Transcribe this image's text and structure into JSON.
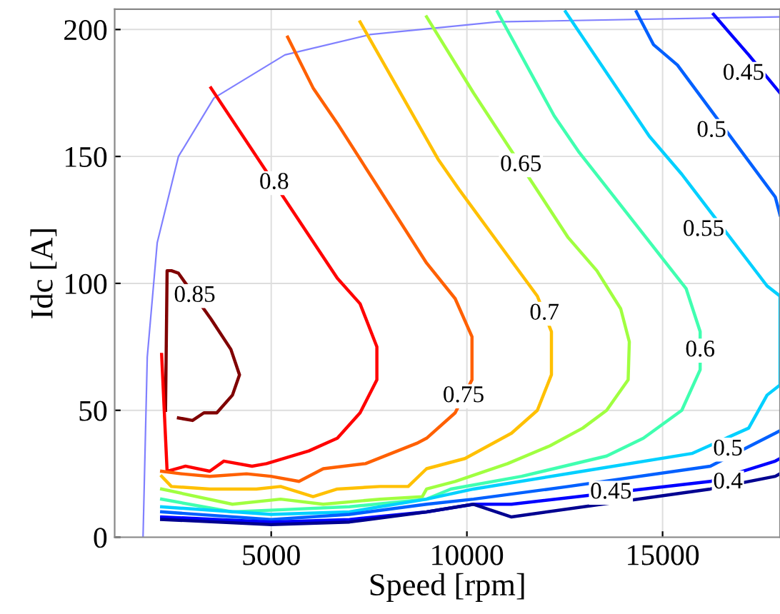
{
  "chart_data": {
    "type": "line",
    "xlabel": "Speed [rpm]",
    "ylabel": "Idc [A]",
    "xlim": [
      1000,
      18000
    ],
    "ylim": [
      0,
      208
    ],
    "xticks": [
      5000,
      10000,
      15000
    ],
    "yticks": [
      0,
      50,
      100,
      150,
      200
    ],
    "grid": true,
    "legend": false,
    "marker": "none",
    "line_style": "solid",
    "series": [
      {
        "color": "#8080ff",
        "x": [
          1725,
          1833,
          2087,
          2630,
          3536,
          5350,
          7520,
          10780,
          18000
        ],
        "values": [
          0,
          71,
          116,
          150,
          173,
          190,
          198,
          203,
          205
        ]
      },
      {
        "name": "0.85",
        "color": "#800000",
        "x": [
          2300,
          2340,
          2450,
          2630,
          3460,
          3970,
          4190,
          4010,
          3610,
          3280,
          2990,
          2630
        ],
        "values": [
          50,
          105,
          105,
          104,
          86,
          74,
          64,
          56,
          49,
          49,
          46,
          47
        ]
      },
      {
        "name": "0.8",
        "color": "#ff0000",
        "x": [
          3460,
          6690,
          7270,
          7700,
          7700,
          7270,
          6690,
          5960,
          4880,
          4510,
          3790,
          3430,
          2810,
          2340,
          2200
        ],
        "values": [
          177,
          102,
          92,
          75,
          62,
          49,
          39,
          34,
          29,
          28,
          30,
          26,
          28,
          26,
          72
        ]
      },
      {
        "name": "0.75",
        "color": "#ff6000",
        "x": [
          5420,
          6070,
          6690,
          8970,
          9700,
          10130,
          10130,
          9700,
          8970,
          8720,
          7410,
          6330,
          5710,
          4990,
          4370,
          3430,
          2700,
          2200
        ],
        "values": [
          197,
          177,
          163,
          108,
          94,
          79,
          62,
          49,
          39,
          37,
          29,
          27,
          22,
          24,
          25,
          24,
          25,
          26
        ]
      },
      {
        "name": "0.7",
        "color": "#ffc000",
        "x": [
          7270,
          9260,
          9800,
          11800,
          12160,
          12160,
          11800,
          11140,
          9950,
          8970,
          8500,
          7780,
          6690,
          6070,
          5240,
          4620,
          3430,
          2450,
          2200
        ],
        "values": [
          203,
          149,
          137,
          95,
          81,
          64,
          50,
          41,
          31,
          27,
          20,
          20,
          19,
          16,
          20,
          19,
          19,
          20,
          24
        ]
      },
      {
        "name": "0.65",
        "color": "#a0ff40",
        "x": [
          8970,
          10170,
          12590,
          13320,
          13930,
          14150,
          14120,
          13570,
          12960,
          12120,
          11040,
          9700,
          8970,
          8860,
          7780,
          6330,
          5240,
          4010,
          2200
        ],
        "values": [
          205,
          175,
          118,
          105,
          90,
          77,
          62,
          50,
          43,
          36,
          29,
          22,
          19,
          16,
          15,
          13,
          15,
          13,
          19
        ]
      },
      {
        "name": "0.6",
        "color": "#40ffb0",
        "x": [
          10780,
          12230,
          12850,
          15600,
          15960,
          15960,
          15490,
          14510,
          13570,
          11400,
          9590,
          8970,
          7000,
          5500,
          4000,
          2200
        ],
        "values": [
          207,
          166,
          152,
          98,
          81,
          66,
          50,
          39,
          32,
          24,
          19,
          15,
          12,
          11,
          10,
          15
        ]
      },
      {
        "name": "0.55",
        "color": "#00d0ff",
        "x": [
          12520,
          14660,
          15490,
          17670,
          18000,
          18000,
          17670,
          17200,
          15750,
          12960,
          10170,
          8970,
          7000,
          5000,
          2200
        ],
        "values": [
          207,
          158,
          143,
          99,
          95,
          60,
          56,
          43,
          33,
          26,
          19,
          15,
          10,
          9,
          12
        ]
      },
      {
        "name": "0.5",
        "color": "#0060ff",
        "x": [
          14330,
          14770,
          15380,
          17880,
          18000
        ],
        "values": [
          207,
          194,
          186,
          134,
          127
        ]
      },
      {
        "name": "0.5",
        "color": "#0060ff",
        "x": [
          18000,
          17880,
          16220,
          12590,
          10170,
          8970,
          7000,
          5000,
          2200
        ],
        "values": [
          42,
          41,
          28,
          20,
          15,
          13,
          9,
          7,
          10
        ]
      },
      {
        "name": "0.45",
        "color": "#0000ff",
        "x": [
          16300,
          17200,
          18000
        ],
        "values": [
          206,
          190,
          175
        ]
      },
      {
        "name": "0.45",
        "color": "#0000ff",
        "x": [
          18000,
          17880,
          16220,
          11140,
          10170,
          8970,
          7000,
          5000,
          2200
        ],
        "values": [
          31,
          30,
          22,
          13,
          13,
          10,
          7,
          6,
          8
        ]
      },
      {
        "name": "0.4",
        "color": "#000090",
        "x": [
          18000,
          17880,
          16220,
          11140,
          10170,
          8970,
          7000,
          5000,
          2200
        ],
        "values": [
          25,
          24,
          19,
          8,
          13,
          10,
          6,
          5,
          7
        ]
      }
    ]
  }
}
